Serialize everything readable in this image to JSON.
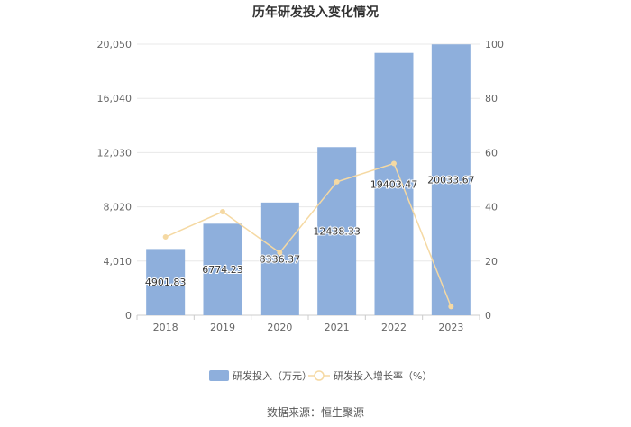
{
  "chart_data": {
    "type": "bar",
    "title": "历年研发投入变化情况",
    "categories": [
      "2018",
      "2019",
      "2020",
      "2021",
      "2022",
      "2023"
    ],
    "series": [
      {
        "name": "研发投入（万元）",
        "type": "bar",
        "axis": "left",
        "color": "#8eafdc",
        "values": [
          4901.83,
          6774.23,
          8336.37,
          12438.33,
          19403.47,
          20033.67
        ],
        "labels": [
          "4901.83",
          "6774.23",
          "8336.37",
          "12438.33",
          "19403.47",
          "20033.67"
        ]
      },
      {
        "name": "研发投入增长率（%）",
        "type": "line",
        "axis": "right",
        "color": "#f5d9a3",
        "values": [
          28.9,
          38.2,
          23.1,
          49.2,
          56.0,
          3.2
        ]
      }
    ],
    "y_left": {
      "min": 0,
      "max": 20050,
      "ticks": [
        "0",
        "4,010",
        "8,020",
        "12,030",
        "16,040",
        "20,050"
      ]
    },
    "y_right": {
      "min": 0,
      "max": 100,
      "ticks": [
        "0",
        "20",
        "40",
        "60",
        "80",
        "100"
      ]
    },
    "legend_position": "bottom",
    "grid": true
  },
  "source": "数据来源：恒生聚源"
}
